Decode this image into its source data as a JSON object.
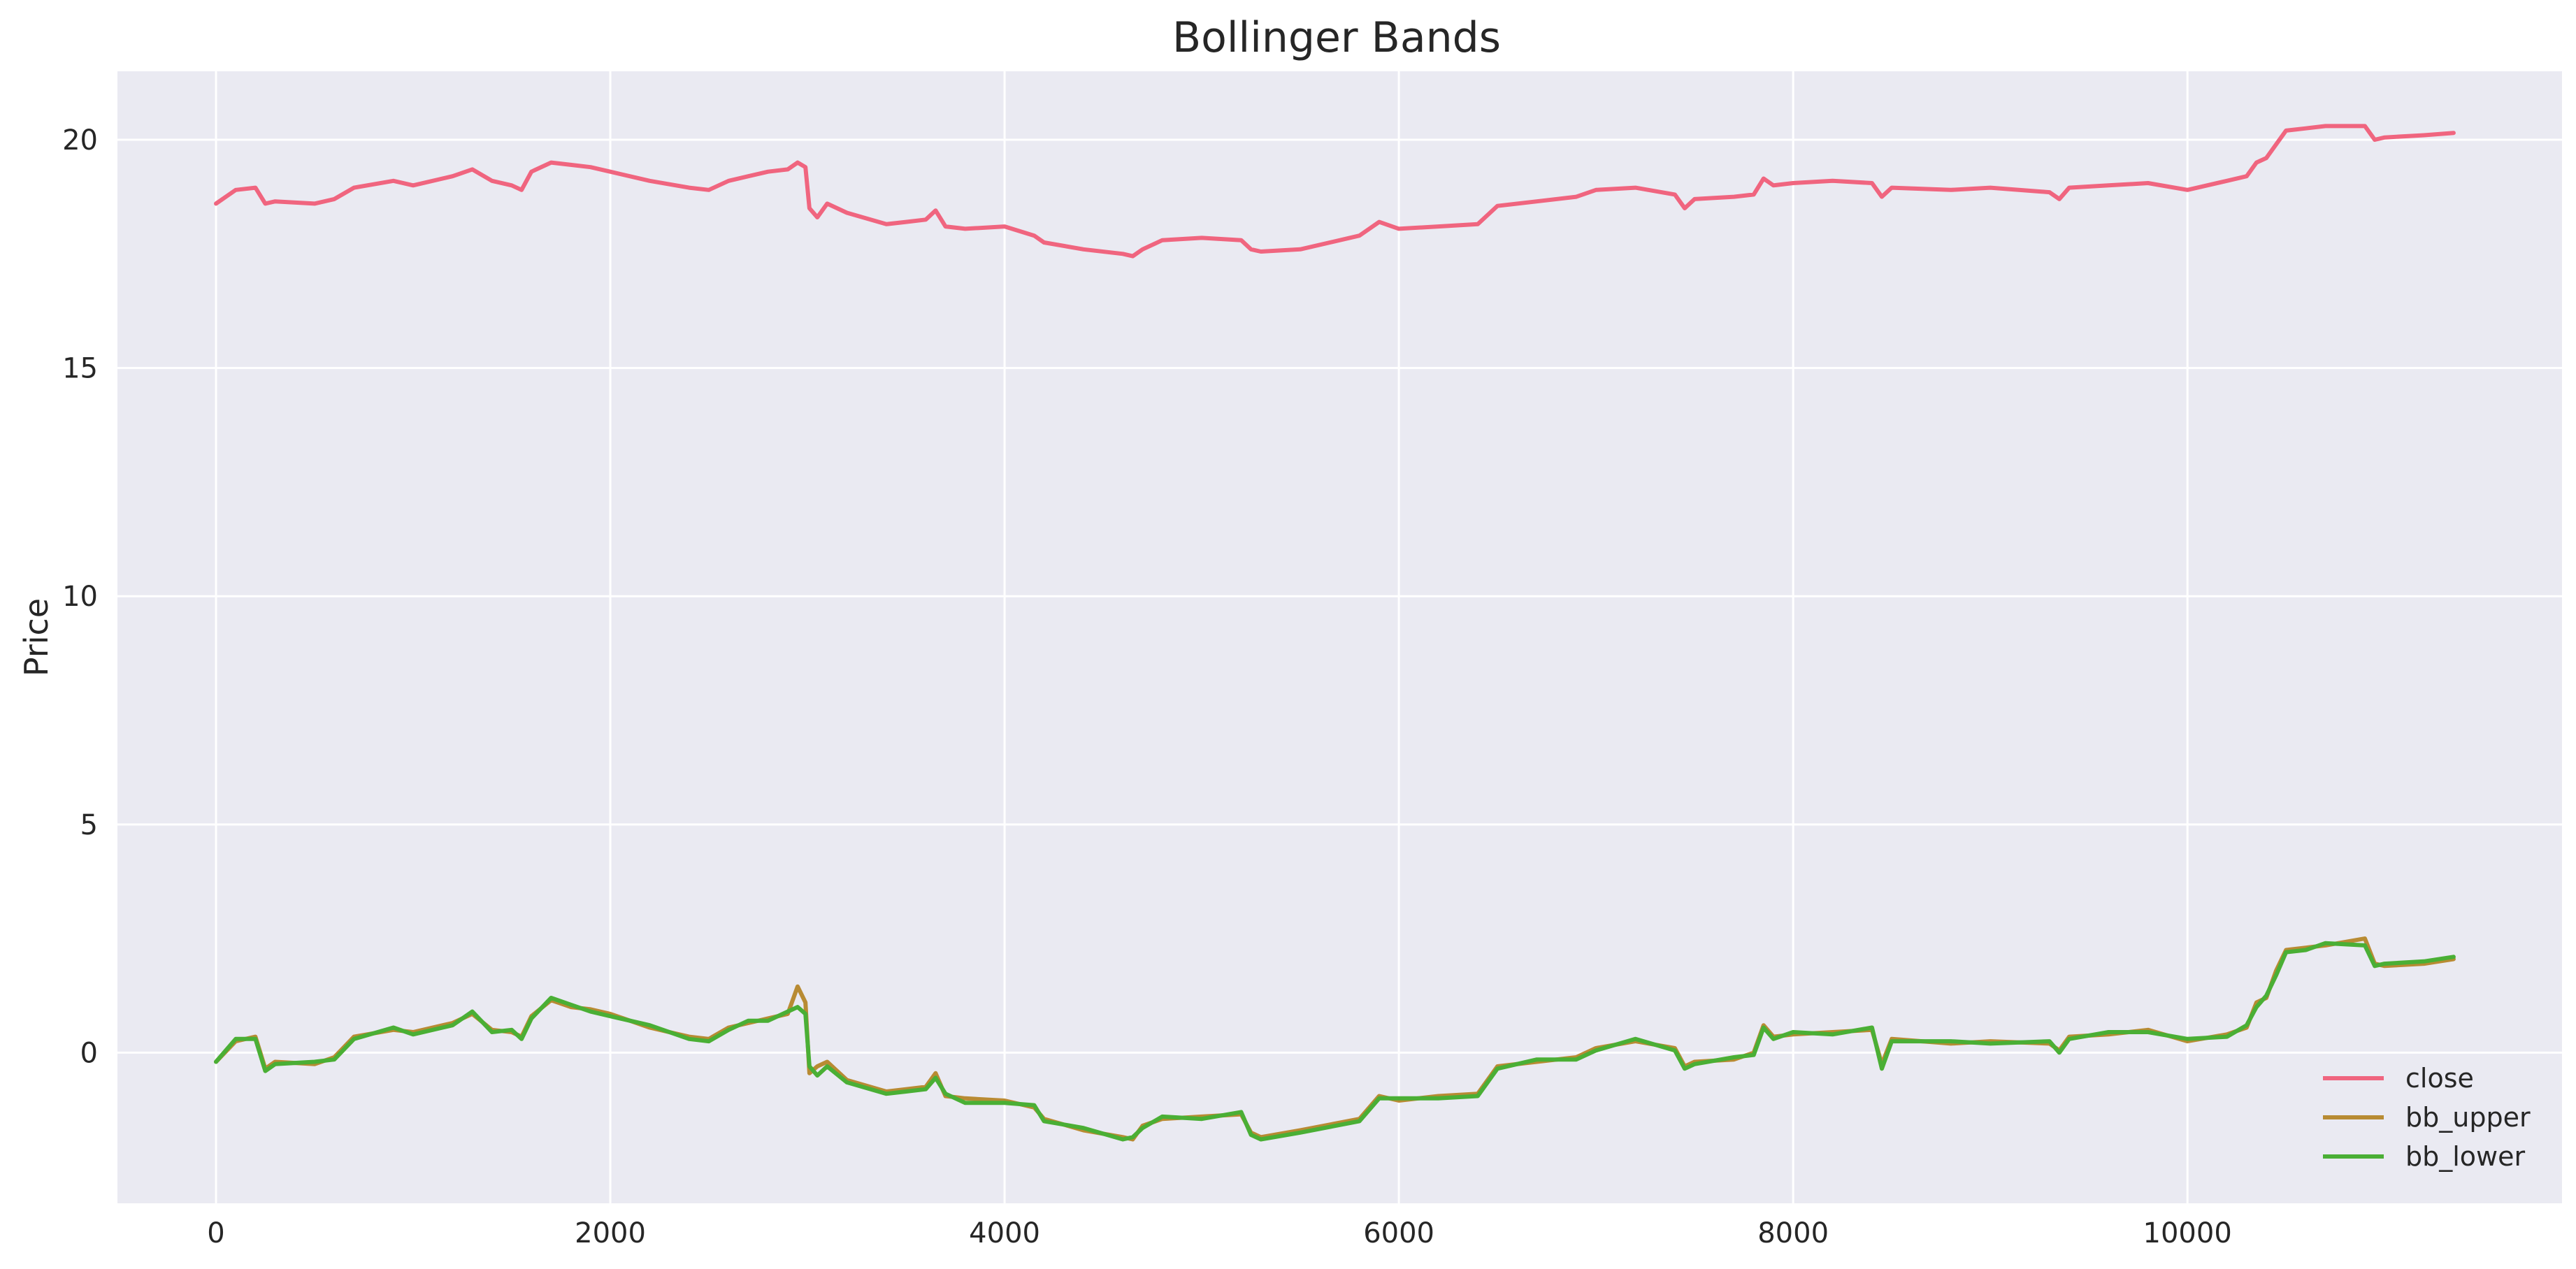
{
  "chart_data": {
    "type": "line",
    "title": "Bollinger Bands",
    "xlabel": "",
    "ylabel": "Price",
    "xlim": [
      -500,
      11900
    ],
    "ylim": [
      -3.3,
      21.5
    ],
    "grid": true,
    "legend_position": "bottom-right",
    "x_ticks": [
      0,
      2000,
      4000,
      6000,
      8000,
      10000
    ],
    "y_ticks": [
      0,
      5,
      10,
      15,
      20
    ],
    "x_tick_labels": [
      "0",
      "2000",
      "4000",
      "6000",
      "8000",
      "10000"
    ],
    "y_tick_labels": [
      "0",
      "5",
      "10",
      "15",
      "20"
    ],
    "series": [
      {
        "name": "close",
        "color": "#f0657f",
        "x": [
          0,
          100,
          200,
          250,
          300,
          500,
          600,
          700,
          900,
          1000,
          1200,
          1300,
          1400,
          1500,
          1550,
          1600,
          1700,
          1800,
          1900,
          2000,
          2200,
          2400,
          2500,
          2600,
          2700,
          2800,
          2900,
          2950,
          2990,
          3010,
          3050,
          3100,
          3200,
          3400,
          3500,
          3600,
          3650,
          3700,
          3800,
          4000,
          4150,
          4200,
          4400,
          4600,
          4650,
          4700,
          4800,
          5000,
          5200,
          5250,
          5300,
          5500,
          5800,
          5900,
          6000,
          6200,
          6400,
          6500,
          6700,
          6900,
          7000,
          7200,
          7400,
          7450,
          7500,
          7700,
          7800,
          7850,
          7900,
          8000,
          8200,
          8400,
          8450,
          8500,
          8800,
          9000,
          9300,
          9350,
          9400,
          9600,
          9800,
          10000,
          10200,
          10300,
          10350,
          10400,
          10450,
          10500,
          10600,
          10700,
          10900,
          10950,
          11000,
          11200,
          11350
        ],
        "values": [
          18.6,
          18.9,
          18.95,
          18.6,
          18.65,
          18.6,
          18.7,
          18.95,
          19.1,
          19.0,
          19.2,
          19.35,
          19.1,
          19.0,
          18.9,
          19.3,
          19.5,
          19.45,
          19.4,
          19.3,
          19.1,
          18.95,
          18.9,
          19.1,
          19.2,
          19.3,
          19.35,
          19.5,
          19.4,
          18.5,
          18.3,
          18.6,
          18.4,
          18.15,
          18.2,
          18.25,
          18.45,
          18.1,
          18.05,
          18.1,
          17.9,
          17.75,
          17.6,
          17.5,
          17.45,
          17.6,
          17.8,
          17.85,
          17.8,
          17.6,
          17.55,
          17.6,
          17.9,
          18.2,
          18.05,
          18.1,
          18.15,
          18.55,
          18.65,
          18.75,
          18.9,
          18.95,
          18.8,
          18.5,
          18.7,
          18.75,
          18.8,
          19.15,
          19.0,
          19.05,
          19.1,
          19.05,
          18.75,
          18.95,
          18.9,
          18.95,
          18.85,
          18.7,
          18.95,
          19.0,
          19.05,
          18.9,
          19.1,
          19.2,
          19.5,
          19.6,
          19.9,
          20.2,
          20.25,
          20.3,
          20.3,
          20.0,
          20.05,
          20.1,
          20.15
        ]
      },
      {
        "name": "bb_upper",
        "color": "#b88b33",
        "x": [
          0,
          100,
          200,
          250,
          300,
          500,
          600,
          700,
          900,
          1000,
          1200,
          1300,
          1400,
          1500,
          1550,
          1600,
          1700,
          1800,
          1900,
          2000,
          2200,
          2400,
          2500,
          2600,
          2700,
          2800,
          2900,
          2950,
          2990,
          3010,
          3050,
          3100,
          3200,
          3400,
          3500,
          3600,
          3650,
          3700,
          3800,
          4000,
          4150,
          4200,
          4400,
          4600,
          4650,
          4700,
          4800,
          5000,
          5200,
          5250,
          5300,
          5500,
          5800,
          5900,
          6000,
          6200,
          6400,
          6500,
          6700,
          6900,
          7000,
          7200,
          7400,
          7450,
          7500,
          7700,
          7800,
          7850,
          7900,
          8000,
          8200,
          8400,
          8450,
          8500,
          8800,
          9000,
          9300,
          9350,
          9400,
          9600,
          9800,
          10000,
          10200,
          10300,
          10350,
          10400,
          10450,
          10500,
          10600,
          10700,
          10900,
          10950,
          11000,
          11200,
          11350
        ],
        "values": [
          -0.2,
          0.25,
          0.35,
          -0.35,
          -0.2,
          -0.25,
          -0.1,
          0.35,
          0.5,
          0.45,
          0.65,
          0.85,
          0.5,
          0.45,
          0.35,
          0.8,
          1.15,
          1.0,
          0.95,
          0.85,
          0.55,
          0.35,
          0.3,
          0.55,
          0.65,
          0.75,
          0.85,
          1.45,
          1.1,
          -0.45,
          -0.3,
          -0.2,
          -0.6,
          -0.85,
          -0.8,
          -0.75,
          -0.45,
          -0.95,
          -1.0,
          -1.05,
          -1.2,
          -1.45,
          -1.7,
          -1.85,
          -1.9,
          -1.6,
          -1.45,
          -1.4,
          -1.35,
          -1.75,
          -1.85,
          -1.7,
          -1.45,
          -0.95,
          -1.05,
          -0.95,
          -0.9,
          -0.3,
          -0.2,
          -0.1,
          0.1,
          0.25,
          0.1,
          -0.3,
          -0.2,
          -0.15,
          0.0,
          0.6,
          0.35,
          0.4,
          0.45,
          0.5,
          -0.25,
          0.3,
          0.2,
          0.25,
          0.2,
          0.05,
          0.35,
          0.4,
          0.5,
          0.25,
          0.4,
          0.55,
          1.1,
          1.2,
          1.8,
          2.25,
          2.3,
          2.35,
          2.5,
          1.95,
          1.9,
          1.95,
          2.05
        ]
      },
      {
        "name": "bb_lower",
        "color": "#4aaf35",
        "x": [
          0,
          100,
          200,
          250,
          300,
          500,
          600,
          700,
          900,
          1000,
          1200,
          1300,
          1400,
          1500,
          1550,
          1600,
          1700,
          1800,
          1900,
          2000,
          2200,
          2400,
          2500,
          2600,
          2700,
          2800,
          2900,
          2950,
          2990,
          3010,
          3050,
          3100,
          3200,
          3400,
          3500,
          3600,
          3650,
          3700,
          3800,
          4000,
          4150,
          4200,
          4400,
          4600,
          4650,
          4700,
          4800,
          5000,
          5200,
          5250,
          5300,
          5500,
          5800,
          5900,
          6000,
          6200,
          6400,
          6500,
          6700,
          6900,
          7000,
          7200,
          7400,
          7450,
          7500,
          7700,
          7800,
          7850,
          7900,
          8000,
          8200,
          8400,
          8450,
          8500,
          8800,
          9000,
          9300,
          9350,
          9400,
          9600,
          9800,
          10000,
          10200,
          10300,
          10350,
          10400,
          10450,
          10500,
          10600,
          10700,
          10900,
          10950,
          11000,
          11200,
          11350
        ],
        "values": [
          -0.2,
          0.3,
          0.3,
          -0.4,
          -0.25,
          -0.2,
          -0.15,
          0.3,
          0.55,
          0.4,
          0.6,
          0.9,
          0.45,
          0.5,
          0.3,
          0.75,
          1.2,
          1.05,
          0.9,
          0.8,
          0.6,
          0.3,
          0.25,
          0.5,
          0.7,
          0.7,
          0.9,
          1.0,
          0.85,
          -0.3,
          -0.5,
          -0.3,
          -0.65,
          -0.9,
          -0.85,
          -0.8,
          -0.55,
          -0.9,
          -1.1,
          -1.1,
          -1.15,
          -1.5,
          -1.65,
          -1.9,
          -1.85,
          -1.65,
          -1.4,
          -1.45,
          -1.3,
          -1.8,
          -1.9,
          -1.75,
          -1.5,
          -1.0,
          -1.0,
          -1.0,
          -0.95,
          -0.35,
          -0.15,
          -0.15,
          0.05,
          0.3,
          0.05,
          -0.35,
          -0.25,
          -0.1,
          -0.05,
          0.55,
          0.3,
          0.45,
          0.4,
          0.55,
          -0.35,
          0.25,
          0.25,
          0.2,
          0.25,
          0.0,
          0.3,
          0.45,
          0.45,
          0.3,
          0.35,
          0.6,
          1.0,
          1.25,
          1.7,
          2.2,
          2.25,
          2.4,
          2.35,
          1.9,
          1.95,
          2.0,
          2.1
        ]
      }
    ]
  }
}
